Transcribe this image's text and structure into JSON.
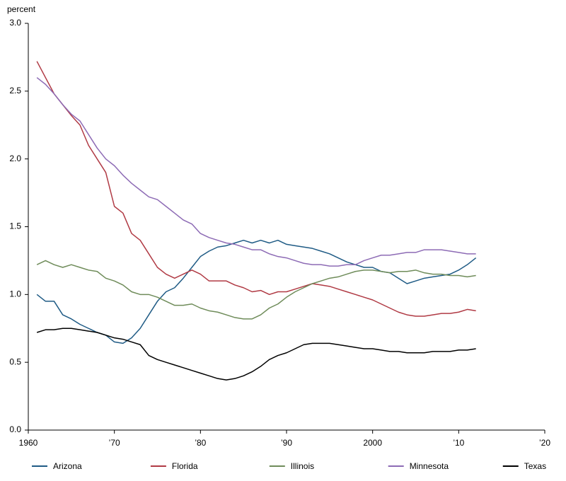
{
  "chart_data": {
    "type": "line",
    "y_label": "percent",
    "x": [
      1961,
      1962,
      1963,
      1964,
      1965,
      1966,
      1967,
      1968,
      1969,
      1970,
      1971,
      1972,
      1973,
      1974,
      1975,
      1976,
      1977,
      1978,
      1979,
      1980,
      1981,
      1982,
      1983,
      1984,
      1985,
      1986,
      1987,
      1988,
      1989,
      1990,
      1991,
      1992,
      1993,
      1994,
      1995,
      1996,
      1997,
      1998,
      1999,
      2000,
      2001,
      2002,
      2003,
      2004,
      2005,
      2006,
      2007,
      2008,
      2009,
      2010,
      2011,
      2012
    ],
    "series": [
      {
        "name": "Arizona",
        "color": "#1f5b85",
        "values": [
          1.0,
          0.95,
          0.95,
          0.85,
          0.82,
          0.78,
          0.75,
          0.72,
          0.7,
          0.65,
          0.64,
          0.68,
          0.75,
          0.85,
          0.95,
          1.02,
          1.05,
          1.12,
          1.2,
          1.28,
          1.32,
          1.35,
          1.36,
          1.38,
          1.4,
          1.38,
          1.4,
          1.38,
          1.4,
          1.37,
          1.36,
          1.35,
          1.34,
          1.32,
          1.3,
          1.27,
          1.24,
          1.22,
          1.2,
          1.2,
          1.17,
          1.16,
          1.12,
          1.08,
          1.1,
          1.12,
          1.13,
          1.14,
          1.15,
          1.18,
          1.22,
          1.27
        ]
      },
      {
        "name": "Florida",
        "color": "#b03a44",
        "values": [
          2.72,
          2.6,
          2.48,
          2.4,
          2.32,
          2.25,
          2.1,
          2.0,
          1.9,
          1.65,
          1.6,
          1.45,
          1.4,
          1.3,
          1.2,
          1.15,
          1.12,
          1.15,
          1.18,
          1.15,
          1.1,
          1.1,
          1.1,
          1.07,
          1.05,
          1.02,
          1.03,
          1.0,
          1.02,
          1.02,
          1.04,
          1.06,
          1.08,
          1.07,
          1.06,
          1.04,
          1.02,
          1.0,
          0.98,
          0.96,
          0.93,
          0.9,
          0.87,
          0.85,
          0.84,
          0.84,
          0.85,
          0.86,
          0.86,
          0.87,
          0.89,
          0.88
        ]
      },
      {
        "name": "Illinois",
        "color": "#6f8c5a",
        "values": [
          1.22,
          1.25,
          1.22,
          1.2,
          1.22,
          1.2,
          1.18,
          1.17,
          1.12,
          1.1,
          1.07,
          1.02,
          1.0,
          1.0,
          0.98,
          0.95,
          0.92,
          0.92,
          0.93,
          0.9,
          0.88,
          0.87,
          0.85,
          0.83,
          0.82,
          0.82,
          0.85,
          0.9,
          0.93,
          0.98,
          1.02,
          1.05,
          1.08,
          1.1,
          1.12,
          1.13,
          1.15,
          1.17,
          1.18,
          1.18,
          1.17,
          1.16,
          1.17,
          1.17,
          1.18,
          1.16,
          1.15,
          1.15,
          1.14,
          1.14,
          1.13,
          1.14
        ]
      },
      {
        "name": "Minnesota",
        "color": "#8d6bb5",
        "values": [
          2.6,
          2.55,
          2.48,
          2.4,
          2.33,
          2.28,
          2.18,
          2.08,
          2.0,
          1.95,
          1.88,
          1.82,
          1.77,
          1.72,
          1.7,
          1.65,
          1.6,
          1.55,
          1.52,
          1.45,
          1.42,
          1.4,
          1.38,
          1.37,
          1.35,
          1.33,
          1.33,
          1.3,
          1.28,
          1.27,
          1.25,
          1.23,
          1.22,
          1.22,
          1.21,
          1.21,
          1.22,
          1.22,
          1.25,
          1.27,
          1.29,
          1.29,
          1.3,
          1.31,
          1.31,
          1.33,
          1.33,
          1.33,
          1.32,
          1.31,
          1.3,
          1.3
        ]
      },
      {
        "name": "Texas",
        "color": "#000000",
        "values": [
          0.72,
          0.74,
          0.74,
          0.75,
          0.75,
          0.74,
          0.73,
          0.72,
          0.7,
          0.68,
          0.67,
          0.65,
          0.63,
          0.55,
          0.52,
          0.5,
          0.48,
          0.46,
          0.44,
          0.42,
          0.4,
          0.38,
          0.37,
          0.38,
          0.4,
          0.43,
          0.47,
          0.52,
          0.55,
          0.57,
          0.6,
          0.63,
          0.64,
          0.64,
          0.64,
          0.63,
          0.62,
          0.61,
          0.6,
          0.6,
          0.59,
          0.58,
          0.58,
          0.57,
          0.57,
          0.57,
          0.58,
          0.58,
          0.58,
          0.59,
          0.59,
          0.6
        ]
      }
    ],
    "xlim": [
      1960,
      2020
    ],
    "xticks": [
      1960,
      {
        "value": 1970,
        "label": "’70"
      },
      {
        "value": 1980,
        "label": "’80"
      },
      {
        "value": 1990,
        "label": "’90"
      },
      2000,
      {
        "value": 2010,
        "label": "’10"
      },
      {
        "value": 2020,
        "label": "’20"
      }
    ],
    "ylim": [
      0,
      3
    ],
    "yticks": [
      {
        "value": 0,
        "label": "0.0"
      },
      0.5,
      {
        "value": 1,
        "label": "1.0"
      },
      1.5,
      {
        "value": 2,
        "label": "2.0"
      },
      2.5,
      {
        "value": 3,
        "label": "3.0"
      }
    ],
    "grid": false,
    "legend": "bottom"
  }
}
